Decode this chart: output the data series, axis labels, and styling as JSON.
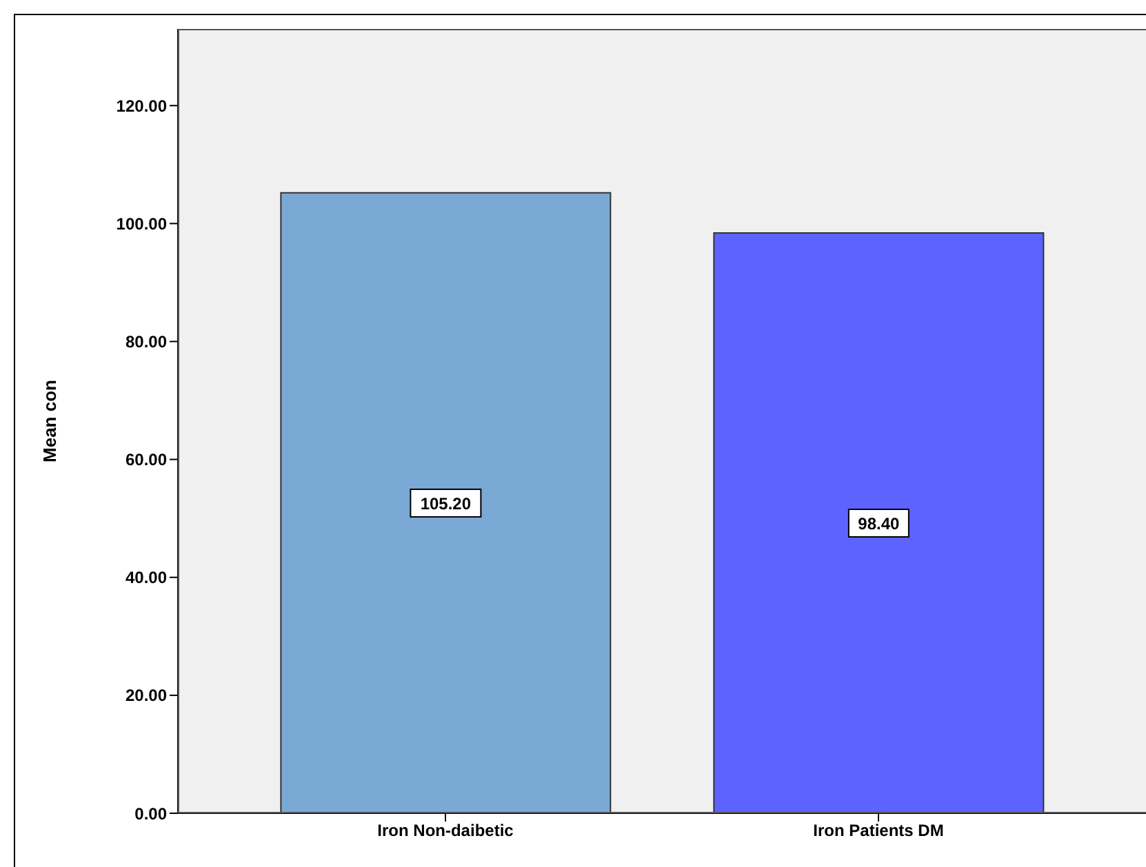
{
  "chart_data": {
    "type": "bar",
    "ylabel": "Mean con",
    "categories": [
      "Iron  Non-daibetic",
      "Iron  Patients DM"
    ],
    "values": [
      105.2,
      98.4
    ],
    "colors": [
      "#7ba9d6",
      "#5d63ff"
    ],
    "value_labels": [
      "105.20",
      "98.40"
    ],
    "ylim": [
      0,
      133
    ],
    "yticks": [
      {
        "value": 0,
        "label": "0.00"
      },
      {
        "value": 20,
        "label": "20.00"
      },
      {
        "value": 40,
        "label": "40.00"
      },
      {
        "value": 60,
        "label": "60.00"
      },
      {
        "value": 80,
        "label": "80.00"
      },
      {
        "value": 100,
        "label": "100.00"
      },
      {
        "value": 120,
        "label": "120.00"
      }
    ],
    "grid": false,
    "legend": false
  }
}
